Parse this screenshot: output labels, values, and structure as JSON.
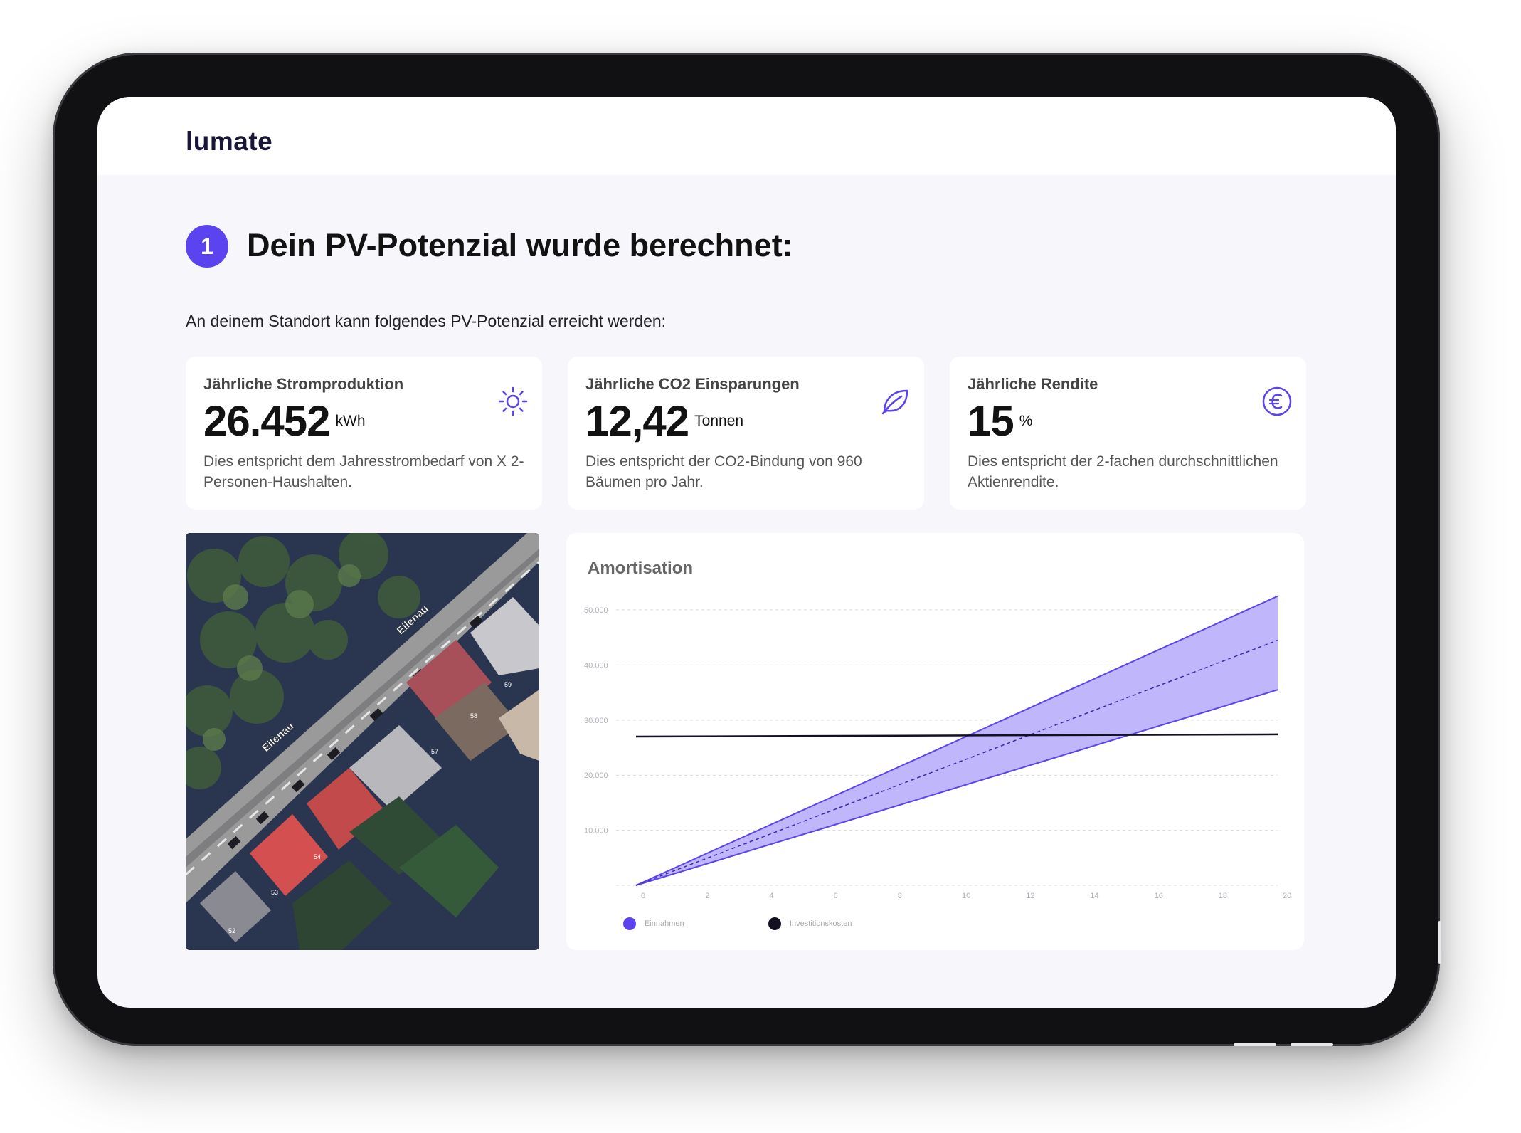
{
  "brand": {
    "logo": "lumate"
  },
  "step": {
    "number": "1",
    "title": "Dein PV-Potenzial wurde berechnet:"
  },
  "intro": "An deinem Standort kann folgendes PV-Potenzial erreicht werden:",
  "cards": [
    {
      "title": "Jährliche Stromproduktion",
      "value": "26.452",
      "unit": "kWh",
      "desc": "Dies entspricht dem Jahresstrombedarf von X 2-Personen-Haushalten.",
      "icon": "sun-icon"
    },
    {
      "title": "Jährliche CO2 Einsparungen",
      "value": "12,42",
      "unit": "Tonnen",
      "desc": "Dies entspricht der CO2-Bindung von 960 Bäumen pro Jahr.",
      "icon": "leaf-icon"
    },
    {
      "title": "Jährliche Rendite",
      "value": "15",
      "unit": "%",
      "desc": "Dies entspricht der 2-fachen durchschnittlichen Aktienrendite.",
      "icon": "euro-icon"
    }
  ],
  "map": {
    "street_labels": [
      "Eilenau",
      "Eilenau"
    ],
    "house_numbers": [
      "59",
      "58",
      "57",
      "54",
      "53",
      "52"
    ]
  },
  "colors": {
    "accent": "#5b43f0",
    "band_fill": "#bdb2fb",
    "line_dark": "#111122"
  },
  "chart_data": {
    "type": "area",
    "title": "Amortisation",
    "x": [
      0,
      20
    ],
    "x_ticks": [
      "0",
      "2",
      "4",
      "6",
      "8",
      "10",
      "12",
      "14",
      "16",
      "18",
      "20"
    ],
    "y_ticks": [
      "50.000",
      "40.000",
      "30.000",
      "20.000",
      "10.000"
    ],
    "ylim": [
      0,
      50000
    ],
    "xlim": [
      0,
      20
    ],
    "series": [
      {
        "name": "Einnahmen",
        "color": "#5b43f0",
        "upper": [
          0,
          52500
        ],
        "mid": [
          0,
          44500
        ],
        "lower": [
          0,
          35500
        ]
      },
      {
        "name": "Investitionskosten",
        "color": "#111122",
        "values": [
          27000,
          27400
        ]
      }
    ],
    "legend": "bottom-left",
    "grid": true
  }
}
